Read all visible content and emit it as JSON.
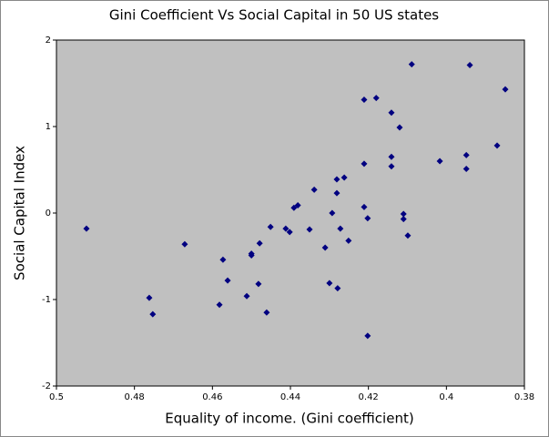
{
  "chart_data": {
    "type": "scatter",
    "title": "Gini Coefficient Vs Social Capital in 50 US states",
    "xlabel": "Equality of income. (Gini coefficient)",
    "ylabel": "Social Capital Index",
    "color": "#000080",
    "plot_background": "#c0c0c0",
    "x": [
      0.4923,
      0.4762,
      0.4753,
      0.4671,
      0.4573,
      0.4561,
      0.4582,
      0.4512,
      0.45,
      0.45,
      0.4479,
      0.4482,
      0.4461,
      0.4451,
      0.4412,
      0.4402,
      0.4391,
      0.4381,
      0.4351,
      0.4339,
      0.4311,
      0.43,
      0.4293,
      0.4281,
      0.4281,
      0.4279,
      0.4272,
      0.4262,
      0.4251,
      0.4211,
      0.4211,
      0.4211,
      0.4202,
      0.4202,
      0.418,
      0.4141,
      0.4141,
      0.4141,
      0.412,
      0.411,
      0.411,
      0.4099,
      0.4089,
      0.4017,
      0.3949,
      0.3949,
      0.394,
      0.387,
      0.3849
    ],
    "values": [
      -0.18,
      -0.98,
      -1.17,
      -0.36,
      -0.54,
      -0.78,
      -1.06,
      -0.96,
      -0.47,
      -0.49,
      -0.35,
      -0.82,
      -1.15,
      -0.16,
      -0.18,
      -0.22,
      0.06,
      0.09,
      -0.19,
      0.27,
      -0.4,
      -0.81,
      0.0,
      0.39,
      0.23,
      -0.87,
      -0.18,
      0.41,
      -0.32,
      1.31,
      0.57,
      0.07,
      -0.06,
      -1.42,
      1.33,
      1.16,
      0.65,
      0.54,
      0.99,
      -0.01,
      -0.07,
      -0.26,
      1.72,
      0.6,
      0.67,
      0.51,
      1.71,
      0.78,
      1.43
    ],
    "xlim": [
      0.5,
      0.38
    ],
    "xticks": [
      0.5,
      0.48,
      0.46,
      0.44,
      0.42,
      0.4,
      0.38
    ],
    "ylim": [
      -2,
      2
    ],
    "yticks": [
      -2,
      -1,
      0,
      1,
      2
    ]
  }
}
